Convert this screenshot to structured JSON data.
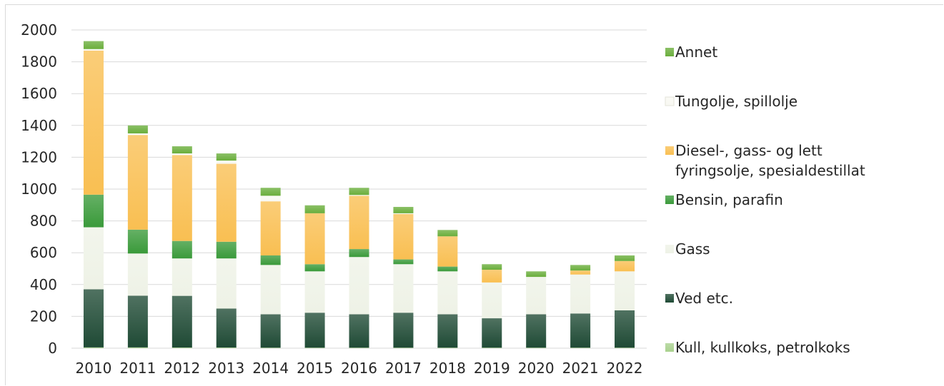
{
  "chart_data": {
    "type": "bar",
    "stacked": true,
    "title": "",
    "xlabel": "",
    "ylabel": "",
    "ylim": [
      0,
      2000
    ],
    "yticks": [
      0,
      200,
      400,
      600,
      800,
      1000,
      1200,
      1400,
      1600,
      1800,
      2000
    ],
    "grid": "horizontal",
    "legend_position": "right",
    "categories": [
      "2010",
      "2011",
      "2012",
      "2013",
      "2014",
      "2015",
      "2016",
      "2017",
      "2018",
      "2019",
      "2020",
      "2021",
      "2022"
    ],
    "series": [
      {
        "name": "Kull, kullkoks, petrolkoks",
        "color": "#a9d18e",
        "values": [
          5,
          5,
          4,
          4,
          3,
          3,
          3,
          3,
          3,
          3,
          3,
          3,
          3
        ]
      },
      {
        "name": "Ved etc.",
        "color": "#1f4a35",
        "values": [
          365,
          325,
          325,
          245,
          210,
          220,
          210,
          220,
          210,
          185,
          210,
          215,
          235
        ]
      },
      {
        "name": "Gass",
        "color": "#eef2e6",
        "values": [
          390,
          265,
          235,
          315,
          310,
          260,
          360,
          305,
          270,
          225,
          235,
          245,
          245
        ]
      },
      {
        "name": "Bensin, parafin",
        "color": "#3a9a3a",
        "values": [
          205,
          150,
          110,
          105,
          60,
          45,
          50,
          30,
          30,
          0,
          0,
          0,
          0
        ]
      },
      {
        "name": "Diesel-, gass- og lett fyringsolje, spesialdestillat",
        "color": "#f9bf52",
        "values": [
          905,
          595,
          540,
          490,
          340,
          320,
          335,
          285,
          190,
          80,
          0,
          25,
          65
        ]
      },
      {
        "name": "Tungolje, spillolje",
        "color": "#f8f8f2",
        "values": [
          10,
          10,
          10,
          20,
          35,
          0,
          5,
          5,
          0,
          0,
          0,
          0,
          0
        ]
      },
      {
        "name": "Annet",
        "color": "#6aae3c",
        "values": [
          50,
          50,
          45,
          45,
          50,
          50,
          45,
          40,
          40,
          35,
          35,
          35,
          35
        ]
      }
    ],
    "legend": [
      {
        "name": "Annet",
        "lines": [
          "Annet"
        ]
      },
      {
        "name": "Tungolje, spillolje",
        "lines": [
          "Tungolje, spillolje"
        ]
      },
      {
        "name": "Diesel-, gass- og lett fyringsolje, spesialdestillat",
        "lines": [
          "Diesel-, gass- og lett",
          "fyringsolje, spesialdestillat"
        ]
      },
      {
        "name": "Bensin, parafin",
        "lines": [
          "Bensin, parafin"
        ]
      },
      {
        "name": "Gass",
        "lines": [
          "Gass"
        ]
      },
      {
        "name": "Ved etc.",
        "lines": [
          "Ved etc."
        ]
      },
      {
        "name": "Kull, kullkoks, petrolkoks",
        "lines": [
          "Kull, kullkoks, petrolkoks"
        ]
      }
    ]
  }
}
